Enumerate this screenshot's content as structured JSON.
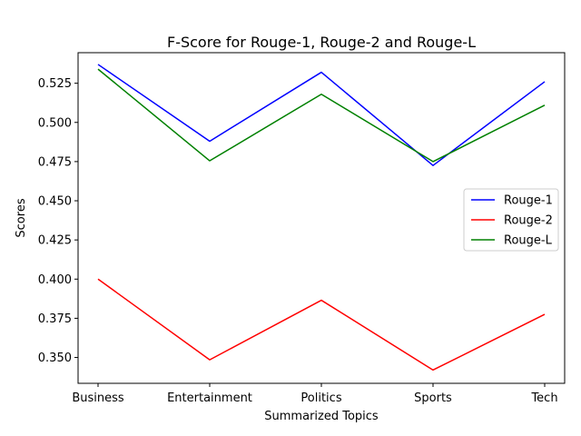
{
  "chart_data": {
    "type": "line",
    "title": "F-Score for Rouge-1, Rouge-2 and Rouge-L",
    "xlabel": "Summarized Topics",
    "ylabel": "Scores",
    "categories": [
      "Business",
      "Entertainment",
      "Politics",
      "Sports",
      "Tech"
    ],
    "ylim": [
      0.3335,
      0.5445
    ],
    "yticks": [
      0.35,
      0.375,
      0.4,
      0.425,
      0.45,
      0.475,
      0.5,
      0.525
    ],
    "ytick_labels": [
      "0.350",
      "0.375",
      "0.400",
      "0.425",
      "0.450",
      "0.475",
      "0.500",
      "0.525"
    ],
    "legend_position": "center-right",
    "grid": false,
    "series": [
      {
        "name": "Rouge-1",
        "color": "#0000ff",
        "values": [
          0.537,
          0.488,
          0.532,
          0.4725,
          0.526
        ]
      },
      {
        "name": "Rouge-2",
        "color": "#ff0000",
        "values": [
          0.4,
          0.3485,
          0.3865,
          0.342,
          0.3775
        ]
      },
      {
        "name": "Rouge-L",
        "color": "#008000",
        "values": [
          0.534,
          0.4755,
          0.518,
          0.475,
          0.511
        ]
      }
    ]
  }
}
